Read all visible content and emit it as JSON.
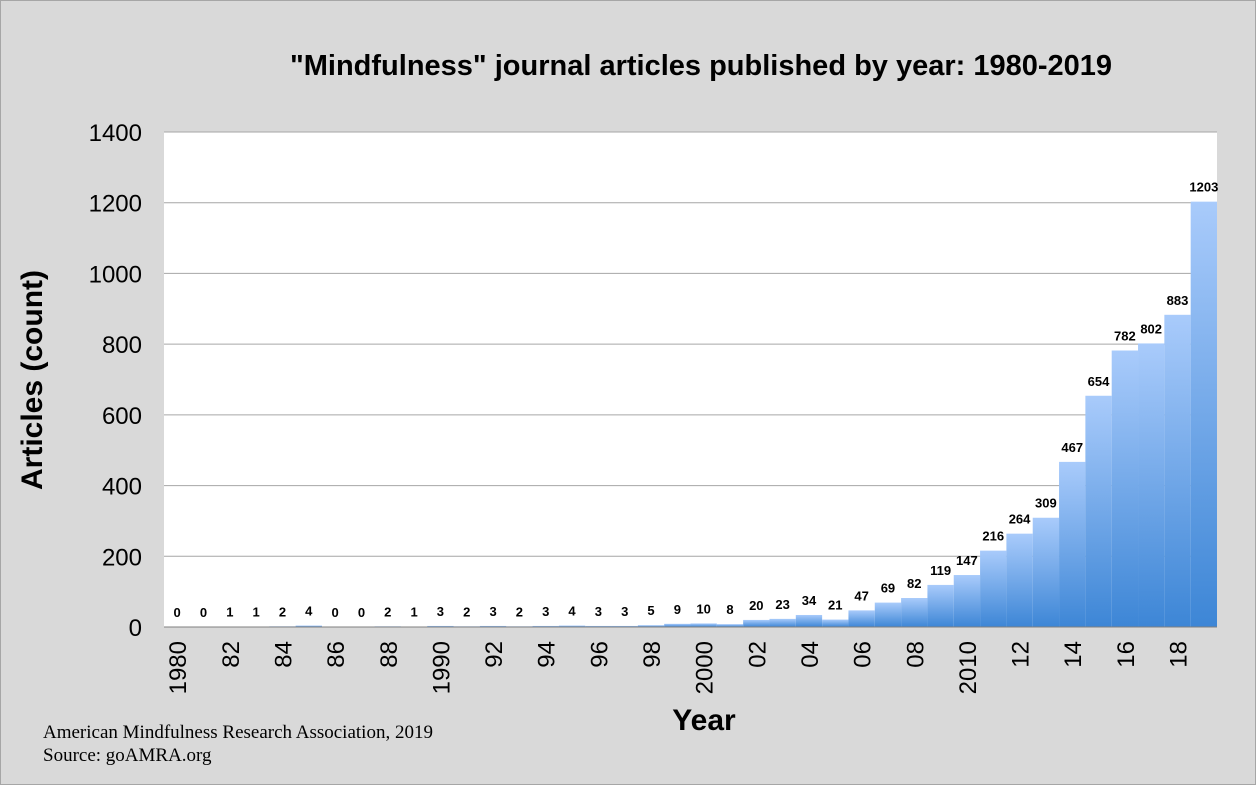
{
  "chart_data": {
    "type": "bar",
    "title": "\"Mindfulness\" journal articles published by year: 1980-2019",
    "xlabel": "Year",
    "ylabel": "Articles (count)",
    "ylim": [
      0,
      1400
    ],
    "yticks": [
      0,
      200,
      400,
      600,
      800,
      1000,
      1200,
      1400
    ],
    "grid": true,
    "legend": "none",
    "categories": [
      "1980",
      "1981",
      "1982",
      "1983",
      "1984",
      "1985",
      "1986",
      "1987",
      "1988",
      "1989",
      "1990",
      "1991",
      "1992",
      "1993",
      "1994",
      "1995",
      "1996",
      "1997",
      "1998",
      "1999",
      "2000",
      "2001",
      "2002",
      "2003",
      "2004",
      "2005",
      "2006",
      "2007",
      "2008",
      "2009",
      "2010",
      "2011",
      "2012",
      "2013",
      "2014",
      "2015",
      "2016",
      "2017",
      "2018",
      "2019"
    ],
    "values": [
      0,
      0,
      1,
      1,
      2,
      4,
      0,
      0,
      2,
      1,
      3,
      2,
      3,
      2,
      3,
      4,
      3,
      3,
      5,
      9,
      10,
      8,
      20,
      23,
      34,
      21,
      47,
      69,
      82,
      119,
      147,
      216,
      264,
      309,
      467,
      654,
      782,
      802,
      883,
      1203
    ],
    "tick_labels": [
      "1980",
      "82",
      "84",
      "86",
      "88",
      "1990",
      "92",
      "94",
      "96",
      "98",
      "2000",
      "02",
      "04",
      "06",
      "08",
      "2010",
      "12",
      "14",
      "16",
      "18"
    ],
    "colors": {
      "bar_top": "#a9cbfb",
      "bar_bottom": "#3d86d6",
      "plot_bg": "#ffffff",
      "page_bg": "#d9d9d9",
      "grid": "#a6a6a6"
    }
  },
  "footer": {
    "line1": "American Mindfulness Research Association, 2019",
    "line2": "Source: goAMRA.org"
  }
}
